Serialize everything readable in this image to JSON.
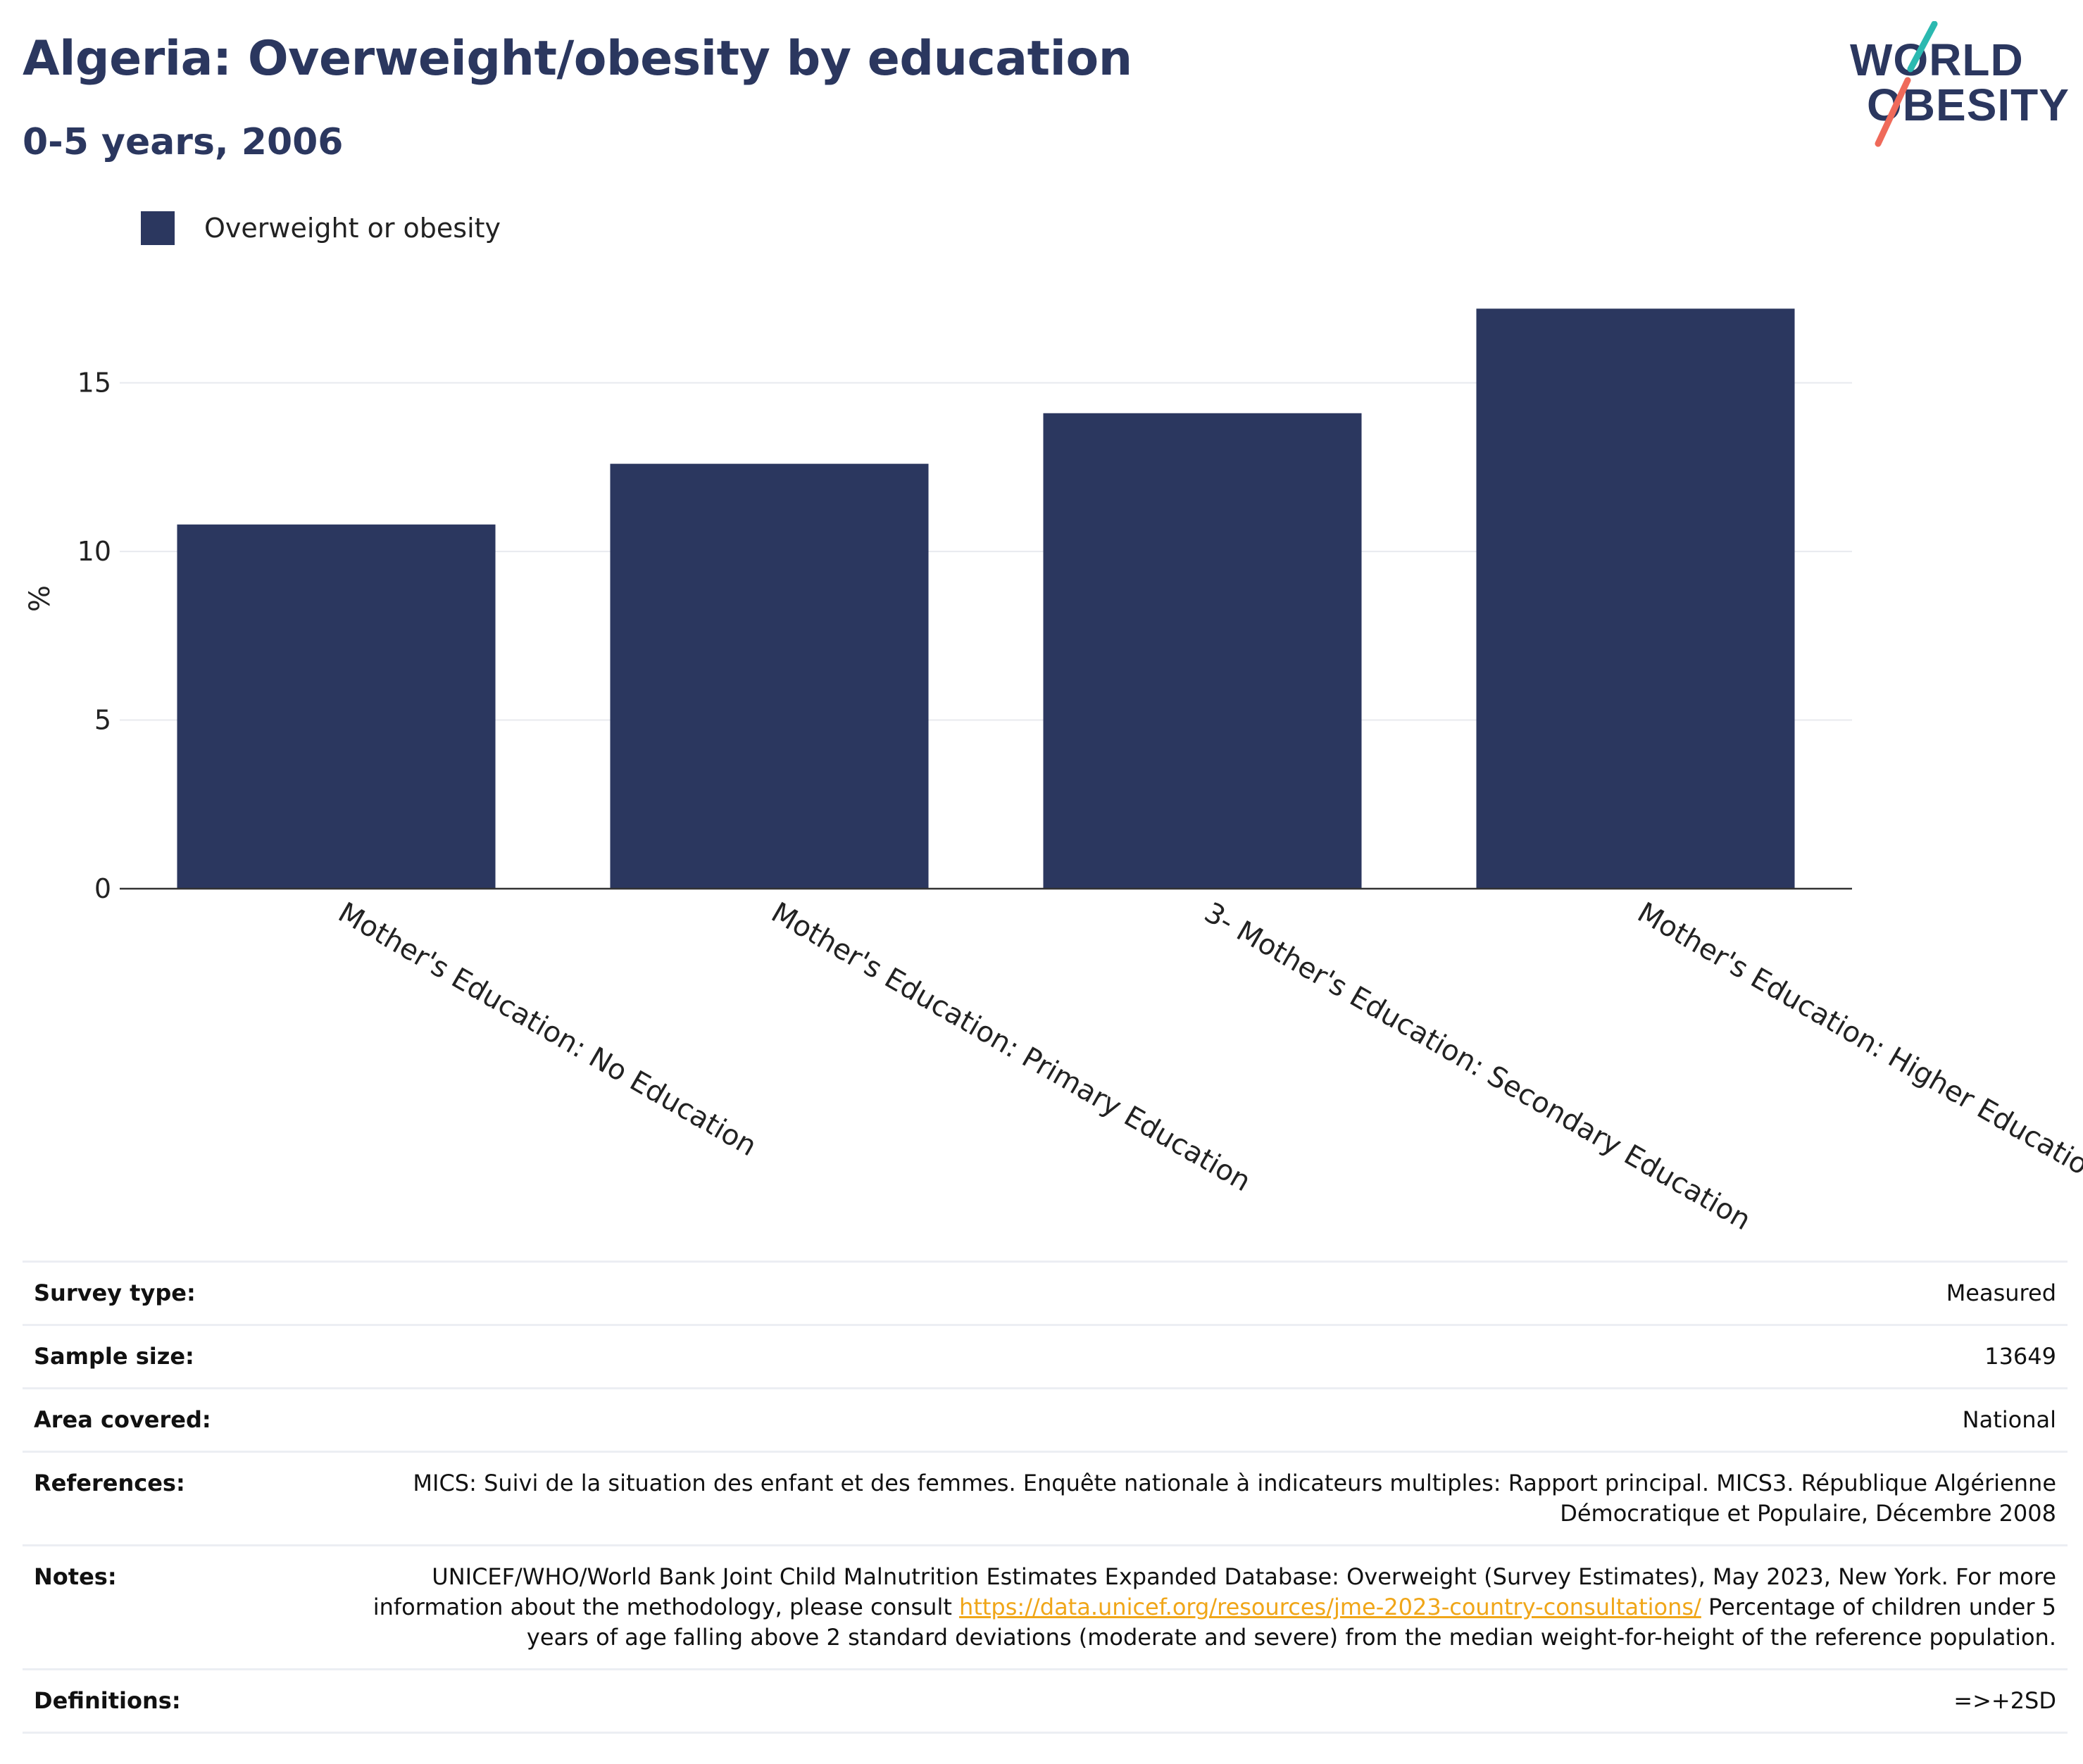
{
  "title": "Algeria: Overweight/obesity by education",
  "subtitle": "0-5 years, 2006",
  "logo": {
    "line1": "WORLD",
    "line2": "OBESITY"
  },
  "colors": {
    "bar": "#2b375f",
    "title": "#2b375f",
    "link": "#f0a618",
    "logo_teal": "#2bb9b0",
    "logo_coral": "#ef6a5a"
  },
  "legend": {
    "label": "Overweight or obesity"
  },
  "chart_data": {
    "type": "bar",
    "categories": [
      "Mother's Education: No Education",
      "Mother's Education: Primary Education",
      "3- Mother's Education: Secondary Education",
      "Mother's Education: Higher Education"
    ],
    "series": [
      {
        "name": "Overweight or obesity",
        "values": [
          10.8,
          12.6,
          14.1,
          17.2
        ]
      }
    ],
    "ylabel": "%",
    "xlabel": "",
    "ylim": [
      0,
      18
    ],
    "yticks": [
      0,
      5,
      10,
      15
    ],
    "grid": true,
    "legend_position": "top-left"
  },
  "meta": [
    {
      "key": "Survey type:",
      "value": "Measured"
    },
    {
      "key": "Sample size:",
      "value": "13649"
    },
    {
      "key": "Area covered:",
      "value": "National"
    },
    {
      "key": "References:",
      "value": "MICS: Suivi de la situation des enfant et des femmes. Enquête nationale à indicateurs multiples: Rapport principal. MICS3. République Algérienne Démocratique et Populaire, Décembre 2008"
    },
    {
      "key": "Notes:",
      "value_pre": "UNICEF/WHO/World Bank Joint Child Malnutrition Estimates Expanded Database: Overweight (Survey Estimates), May 2023, New York. For more information about the methodology, please consult ",
      "link": "https://data.unicef.org/resources/jme-2023-country-consultations/",
      "value_post": " Percentage of children under 5 years of age falling above 2 standard deviations (moderate and severe) from the median weight-for-height of the reference population."
    },
    {
      "key": "Definitions:",
      "value": "=>+2SD"
    }
  ]
}
